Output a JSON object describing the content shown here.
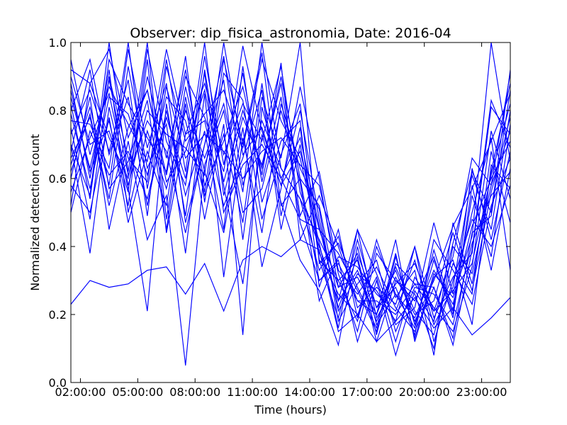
{
  "chart_data": {
    "type": "line",
    "title": "Observer: dip_fisica_astronomia, Date: 2016-04",
    "xlabel": "Time (hours)",
    "ylabel": "Normalized detection count",
    "xlim": [
      1.5,
      24.5
    ],
    "ylim": [
      0.0,
      1.0
    ],
    "x_ticks": [
      2,
      5,
      8,
      11,
      14,
      17,
      20,
      23
    ],
    "x_tick_labels": [
      "02:00:00",
      "05:00:00",
      "08:00:00",
      "11:00:00",
      "14:00:00",
      "17:00:00",
      "20:00:00",
      "23:00:00"
    ],
    "y_ticks": [
      0.0,
      0.2,
      0.4,
      0.6,
      0.8,
      1.0
    ],
    "y_tick_labels": [
      "0.0",
      "0.2",
      "0.4",
      "0.6",
      "0.8",
      "1.0"
    ],
    "grid": false,
    "legend": "none",
    "line_color": "#0000ff",
    "x": [
      1.5,
      2.5,
      3.5,
      4.5,
      5.5,
      6.5,
      7.5,
      8.5,
      9.5,
      10.5,
      11.5,
      12.5,
      13.5,
      14.5,
      15.5,
      16.5,
      17.5,
      18.5,
      19.5,
      20.5,
      21.5,
      22.5,
      23.5,
      24.5
    ],
    "series": [
      {
        "values": [
          0.23,
          0.3,
          0.28,
          0.29,
          0.33,
          0.34,
          0.26,
          0.35,
          0.21,
          0.36,
          0.4,
          0.37,
          0.42,
          0.39,
          0.15,
          0.2,
          0.12,
          0.18,
          0.25,
          0.16,
          0.22,
          0.14,
          0.19,
          0.25
        ]
      },
      {
        "values": [
          0.92,
          0.88,
          0.98,
          0.72,
          0.86,
          0.61,
          0.9,
          0.78,
          0.62,
          0.99,
          0.74,
          0.58,
          0.68,
          0.45,
          0.28,
          0.38,
          0.22,
          0.33,
          0.18,
          0.3,
          0.46,
          0.57,
          0.71,
          0.85
        ]
      },
      {
        "values": [
          0.7,
          0.55,
          1.0,
          0.62,
          1.0,
          0.48,
          0.84,
          0.56,
          0.95,
          0.7,
          0.97,
          0.52,
          0.6,
          0.3,
          0.36,
          0.12,
          0.3,
          0.08,
          0.27,
          0.18,
          0.41,
          0.62,
          0.5,
          0.92
        ]
      },
      {
        "values": [
          0.86,
          0.62,
          0.77,
          0.52,
          0.95,
          0.44,
          0.73,
          0.88,
          0.67,
          0.82,
          0.71,
          0.93,
          0.56,
          0.4,
          0.24,
          0.45,
          0.19,
          0.29,
          0.35,
          0.21,
          0.37,
          0.66,
          0.58,
          0.74
        ]
      },
      {
        "values": [
          0.64,
          0.81,
          0.58,
          0.98,
          0.69,
          0.88,
          0.47,
          0.7,
          0.89,
          0.42,
          0.84,
          0.66,
          1.0,
          0.35,
          0.41,
          0.28,
          0.16,
          0.38,
          0.13,
          0.32,
          0.25,
          0.43,
          1.0,
          0.65
        ]
      },
      {
        "values": [
          0.75,
          0.48,
          0.9,
          0.66,
          0.59,
          0.95,
          0.62,
          1.0,
          0.55,
          0.78,
          0.64,
          0.88,
          0.49,
          0.62,
          0.33,
          0.26,
          0.34,
          0.22,
          0.15,
          0.28,
          0.11,
          0.39,
          0.83,
          0.69
        ]
      },
      {
        "values": [
          0.56,
          0.72,
          0.85,
          0.58,
          0.8,
          0.73,
          0.69,
          0.61,
          1.0,
          0.67,
          0.75,
          0.58,
          0.8,
          0.48,
          0.21,
          0.32,
          0.27,
          0.18,
          0.4,
          0.12,
          0.3,
          0.48,
          0.4,
          0.58
        ]
      },
      {
        "values": [
          0.8,
          0.95,
          0.67,
          0.84,
          0.52,
          0.8,
          0.55,
          0.74,
          0.45,
          0.93,
          0.53,
          0.71,
          0.77,
          0.28,
          0.45,
          0.19,
          0.42,
          0.25,
          0.33,
          0.08,
          0.47,
          0.29,
          0.62,
          0.88
        ]
      },
      {
        "values": [
          0.88,
          0.6,
          0.92,
          0.5,
          0.74,
          0.57,
          0.8,
          0.66,
          0.82,
          0.56,
          1.0,
          0.63,
          0.54,
          0.42,
          0.3,
          0.36,
          0.12,
          0.3,
          0.24,
          0.37,
          0.2,
          0.55,
          0.37,
          0.76
        ]
      },
      {
        "values": [
          0.66,
          0.78,
          0.54,
          0.93,
          0.63,
          0.76,
          0.38,
          0.85,
          0.31,
          0.72,
          0.44,
          0.82,
          0.63,
          0.51,
          0.18,
          0.29,
          0.36,
          0.15,
          0.28,
          0.26,
          0.17,
          0.41,
          0.55,
          0.62
        ]
      },
      {
        "values": [
          0.52,
          0.88,
          0.72,
          0.6,
          0.9,
          0.66,
          0.92,
          0.58,
          0.71,
          0.87,
          0.61,
          0.94,
          0.42,
          0.55,
          0.4,
          0.24,
          0.2,
          0.34,
          0.21,
          0.14,
          0.35,
          0.26,
          0.68,
          0.47
        ]
      },
      {
        "values": [
          0.7,
          0.38,
          0.81,
          0.57,
          0.21,
          0.82,
          0.49,
          0.92,
          0.58,
          0.29,
          0.73,
          0.53,
          0.36,
          0.27,
          0.11,
          0.4,
          0.17,
          0.26,
          0.19,
          0.33,
          0.23,
          0.46,
          0.6,
          0.71
        ]
      },
      {
        "values": [
          0.95,
          0.67,
          0.87,
          0.76,
          0.65,
          0.98,
          0.73,
          0.77,
          0.52,
          0.66,
          0.86,
          0.45,
          0.7,
          0.38,
          0.26,
          0.2,
          0.31,
          0.12,
          0.31,
          0.22,
          0.15,
          0.34,
          0.74,
          0.54
        ]
      },
      {
        "values": [
          0.6,
          0.84,
          0.45,
          0.71,
          0.42,
          0.55,
          0.05,
          0.64,
          0.8,
          0.5,
          0.57,
          0.8,
          0.59,
          0.24,
          0.37,
          0.34,
          0.26,
          0.21,
          0.36,
          0.17,
          0.28,
          0.61,
          0.45,
          0.8
        ]
      },
      {
        "values": [
          0.82,
          0.54,
          0.95,
          0.82,
          0.72,
          0.62,
          0.96,
          0.53,
          0.91,
          0.83,
          0.48,
          0.67,
          0.82,
          0.36,
          0.19,
          0.42,
          0.22,
          0.28,
          0.14,
          0.42,
          0.33,
          0.23,
          0.52,
          0.66
        ]
      },
      {
        "values": [
          0.77,
          0.76,
          0.63,
          1.0,
          0.57,
          0.87,
          0.66,
          0.73,
          0.68,
          0.6,
          0.68,
          0.72,
          0.64,
          0.58,
          0.32,
          0.15,
          0.38,
          0.3,
          0.26,
          0.1,
          0.4,
          0.32,
          0.58,
          0.91
        ]
      },
      {
        "values": [
          0.68,
          0.92,
          0.57,
          0.65,
          0.83,
          0.45,
          0.82,
          0.48,
          0.76,
          0.14,
          0.81,
          0.6,
          0.72,
          0.46,
          0.22,
          0.37,
          0.14,
          0.37,
          0.17,
          0.36,
          0.19,
          0.58,
          0.33,
          0.63
        ]
      },
      {
        "values": [
          0.9,
          0.7,
          0.74,
          0.56,
          0.98,
          0.71,
          0.58,
          0.96,
          0.64,
          0.91,
          0.59,
          0.84,
          0.47,
          0.3,
          0.35,
          0.24,
          0.24,
          0.2,
          0.29,
          0.28,
          0.13,
          0.44,
          0.49,
          0.86
        ]
      },
      {
        "values": [
          0.58,
          0.5,
          0.78,
          0.47,
          0.68,
          0.52,
          0.87,
          0.62,
          0.44,
          0.75,
          0.34,
          0.57,
          0.87,
          0.6,
          0.28,
          0.31,
          0.2,
          0.42,
          0.12,
          0.31,
          0.36,
          0.17,
          0.64,
          0.57
        ]
      },
      {
        "values": [
          0.73,
          0.86,
          0.68,
          0.89,
          0.49,
          0.93,
          0.71,
          0.79,
          0.86,
          0.69,
          0.95,
          0.77,
          0.66,
          0.41,
          0.16,
          0.45,
          0.32,
          0.17,
          0.22,
          0.47,
          0.26,
          0.5,
          0.72,
          0.33
        ]
      },
      {
        "values": [
          0.84,
          0.63,
          0.89,
          0.61,
          0.77,
          0.68,
          0.44,
          0.7,
          0.96,
          0.58,
          0.77,
          0.63,
          0.54,
          0.33,
          0.43,
          0.22,
          0.28,
          0.23,
          0.4,
          0.19,
          0.31,
          0.38,
          0.81,
          0.73
        ]
      },
      {
        "values": [
          0.62,
          0.79,
          0.52,
          0.75,
          0.86,
          0.59,
          0.68,
          0.86,
          0.59,
          0.8,
          0.63,
          0.9,
          0.6,
          0.52,
          0.24,
          0.33,
          0.18,
          0.31,
          0.2,
          0.24,
          0.44,
          0.27,
          0.56,
          0.78
        ]
      },
      {
        "values": [
          0.79,
          0.57,
          0.84,
          0.79,
          0.61,
          0.84,
          0.77,
          0.55,
          0.73,
          0.47,
          0.88,
          0.49,
          0.75,
          0.36,
          0.3,
          0.18,
          0.4,
          0.26,
          0.16,
          0.39,
          0.21,
          0.63,
          0.42,
          0.68
        ]
      },
      {
        "values": [
          0.5,
          0.74,
          0.61,
          0.68,
          0.54,
          0.78,
          0.6,
          0.91,
          0.5,
          0.64,
          0.7,
          0.6,
          0.48,
          0.45,
          0.38,
          0.27,
          0.15,
          0.35,
          0.29,
          0.21,
          0.27,
          0.35,
          0.61,
          0.82
        ]
      }
    ]
  }
}
